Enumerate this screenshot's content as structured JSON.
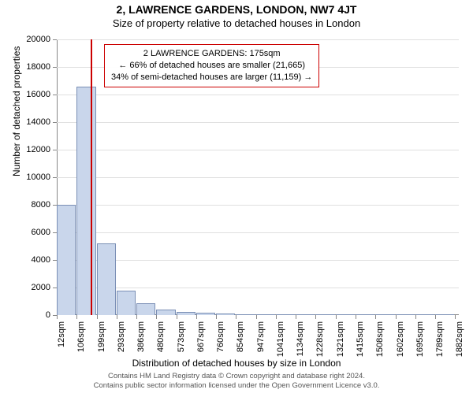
{
  "title": "2, LAWRENCE GARDENS, LONDON, NW7 4JT",
  "subtitle": "Size of property relative to detached houses in London",
  "ylabel": "Number of detached properties",
  "xlabel": "Distribution of detached houses by size in London",
  "footer_line1": "Contains HM Land Registry data © Crown copyright and database right 2024.",
  "footer_line2": "Contains public sector information licensed under the Open Government Licence v3.0.",
  "chart": {
    "type": "histogram",
    "ylim": [
      0,
      20000
    ],
    "ytick_step": 2000,
    "yticks": [
      0,
      2000,
      4000,
      6000,
      8000,
      10000,
      12000,
      14000,
      16000,
      18000,
      20000
    ],
    "xrange": [
      12,
      1900
    ],
    "xticks": [
      12,
      106,
      199,
      293,
      386,
      480,
      573,
      667,
      760,
      854,
      947,
      1041,
      1134,
      1228,
      1321,
      1415,
      1508,
      1602,
      1695,
      1789,
      1882
    ],
    "xtick_suffix": "sqm",
    "bar_color": "#c9d6eb",
    "bar_border": "#7a8fb5",
    "bars": [
      {
        "x0": 12,
        "x1": 106,
        "count": 8000
      },
      {
        "x0": 106,
        "x1": 199,
        "count": 16600
      },
      {
        "x0": 199,
        "x1": 293,
        "count": 5200
      },
      {
        "x0": 293,
        "x1": 386,
        "count": 1800
      },
      {
        "x0": 386,
        "x1": 480,
        "count": 850
      },
      {
        "x0": 480,
        "x1": 573,
        "count": 400
      },
      {
        "x0": 573,
        "x1": 667,
        "count": 250
      },
      {
        "x0": 667,
        "x1": 760,
        "count": 150
      },
      {
        "x0": 760,
        "x1": 854,
        "count": 110
      },
      {
        "x0": 854,
        "x1": 947,
        "count": 80
      },
      {
        "x0": 947,
        "x1": 1041,
        "count": 50
      },
      {
        "x0": 1041,
        "x1": 1134,
        "count": 35
      },
      {
        "x0": 1134,
        "x1": 1228,
        "count": 25
      },
      {
        "x0": 1228,
        "x1": 1321,
        "count": 20
      },
      {
        "x0": 1321,
        "x1": 1415,
        "count": 15
      },
      {
        "x0": 1415,
        "x1": 1508,
        "count": 12
      },
      {
        "x0": 1508,
        "x1": 1602,
        "count": 10
      },
      {
        "x0": 1602,
        "x1": 1695,
        "count": 8
      },
      {
        "x0": 1695,
        "x1": 1789,
        "count": 6
      },
      {
        "x0": 1789,
        "x1": 1882,
        "count": 5
      }
    ],
    "marker": {
      "value": 175,
      "color": "#cc0000"
    },
    "callout": {
      "border_color": "#cc0000",
      "line1": "2 LAWRENCE GARDENS: 175sqm",
      "line2": "← 66% of detached houses are smaller (21,665)",
      "line3": "34% of semi-detached houses are larger (11,159) →"
    },
    "background_color": "#ffffff",
    "grid_color": "#e0e0e0",
    "axis_color": "#888888",
    "tick_fontsize": 11,
    "label_fontsize": 12,
    "title_fontsize": 14
  }
}
